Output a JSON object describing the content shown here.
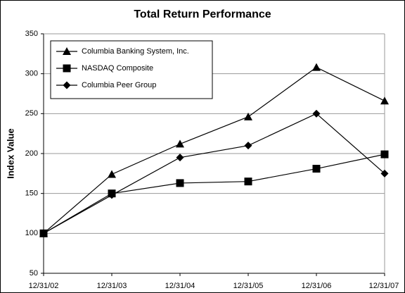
{
  "chart_data": {
    "type": "line",
    "title": "Total Return Performance",
    "y_label": "Index Value",
    "categories": [
      "12/31/02",
      "12/31/03",
      "12/31/04",
      "12/31/05",
      "12/31/06",
      "12/31/07"
    ],
    "series": [
      {
        "name": "Columbia Banking System, Inc.",
        "color": "#000000",
        "marker": "triangle",
        "values": [
          100,
          174,
          212,
          246,
          308,
          266
        ]
      },
      {
        "name": "NASDAQ Composite",
        "color": "#000000",
        "marker": "square",
        "values": [
          100,
          150,
          163,
          165,
          181,
          199
        ]
      },
      {
        "name": "Columbia Peer Group",
        "color": "#000000",
        "marker": "diamond",
        "values": [
          100,
          148,
          195,
          210,
          250,
          175
        ]
      }
    ],
    "ylim": [
      50,
      350
    ],
    "yticks": [
      50,
      100,
      150,
      200,
      250,
      300,
      350
    ],
    "grid": true,
    "legend": "top-left"
  }
}
